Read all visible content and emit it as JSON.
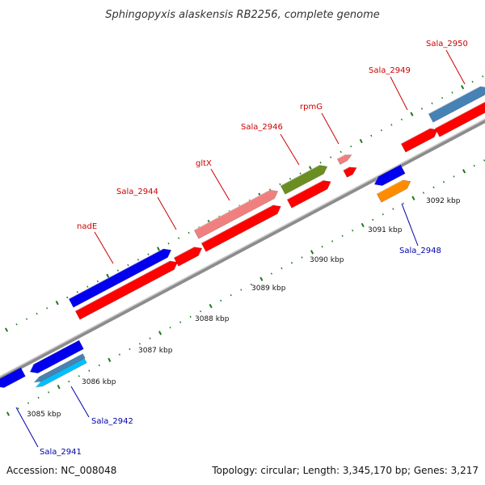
{
  "title": "Sphingopyxis alaskensis RB2256, complete genome",
  "accession": "Accession: NC_008048",
  "summary": "Topology: circular; Length: 3,345,170 bp; Genes: 3,217",
  "colors": {
    "backbone": "#8c8c8c",
    "tick": "#1e7a1e",
    "red_label": "#cc0000",
    "blue_label": "#0000aa",
    "feature_red": "#ff0000",
    "feature_blue": "#0000ee",
    "feature_pink": "#f08080",
    "feature_olive": "#6b8e23",
    "feature_steel": "#4682b4",
    "feature_cyan": "#00bfff",
    "feature_orange": "#ff8c00"
  },
  "kbp_labels": [
    "3085 kbp",
    "3086 kbp",
    "3087 kbp",
    "3088 kbp",
    "3089 kbp",
    "3090 kbp",
    "3091 kbp",
    "3092 kbp"
  ],
  "gene_labels": [
    {
      "text": "nadE",
      "strand": "forward"
    },
    {
      "text": "Sala_2944",
      "strand": "forward"
    },
    {
      "text": "gltX",
      "strand": "forward"
    },
    {
      "text": "Sala_2946",
      "strand": "forward"
    },
    {
      "text": "rpmG",
      "strand": "forward"
    },
    {
      "text": "Sala_2949",
      "strand": "forward"
    },
    {
      "text": "Sala_2950",
      "strand": "forward"
    },
    {
      "text": "Sala_2941",
      "strand": "reverse"
    },
    {
      "text": "Sala_2942",
      "strand": "reverse"
    },
    {
      "text": "Sala_2948",
      "strand": "reverse"
    }
  ]
}
